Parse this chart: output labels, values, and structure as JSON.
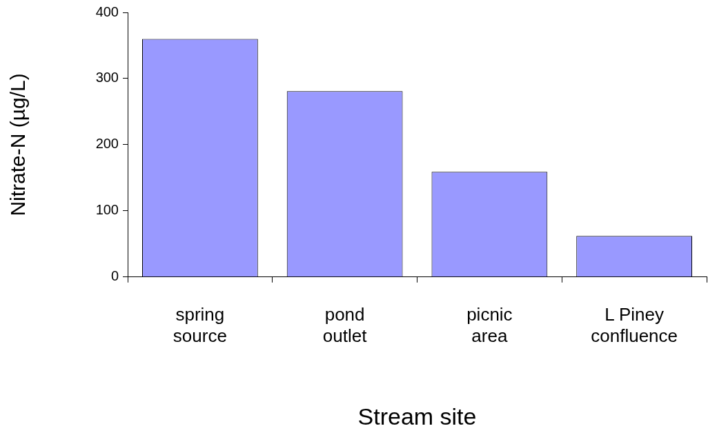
{
  "chart_data": {
    "type": "bar",
    "xlabel": "Stream site",
    "ylabel": "Nitrate-N (µg/L)",
    "categories": [
      "spring\nsource",
      "pond\noutlet",
      "picnic\narea",
      "L Piney\nconfluence"
    ],
    "values": [
      360,
      281,
      159,
      62
    ],
    "color": "#9999ff",
    "ylim": [
      0,
      400
    ],
    "yticks": [
      0,
      100,
      200,
      300,
      400
    ],
    "grid": false,
    "legend": false
  }
}
